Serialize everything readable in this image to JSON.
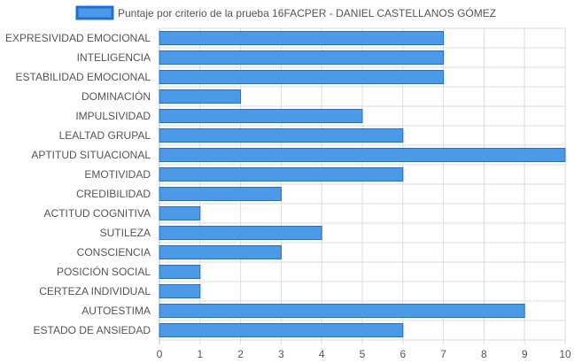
{
  "chart_data": {
    "type": "bar",
    "orientation": "horizontal",
    "categories": [
      "EXPRESIVIDAD EMOCIONAL",
      "INTELIGENCIA",
      "ESTABILIDAD EMOCIONAL",
      "DOMINACIÓN",
      "IMPULSIVIDAD",
      "LEALTAD GRUPAL",
      "APTITUD SITUACIONAL",
      "EMOTIVIDAD",
      "CREDIBILIDAD",
      "ACTITUD COGNITIVA",
      "SUTILEZA",
      "CONSCIENCIA",
      "POSICIÓN SOCIAL",
      "CERTEZA INDIVIDUAL",
      "AUTOESTIMA",
      "ESTADO DE ANSIEDAD"
    ],
    "series": [
      {
        "name": "Puntaje por criterio de la prueba 16FACPER - DANIEL CASTELLANOS GÓMEZ",
        "values": [
          7,
          7,
          7,
          2,
          5,
          6,
          10,
          6,
          3,
          1,
          4,
          3,
          1,
          1,
          9,
          6
        ],
        "color": "#4a9ae8",
        "border_color": "#1e6fd9"
      }
    ],
    "xlim": [
      0,
      10
    ],
    "x_ticks": [
      "0",
      "1",
      "2",
      "3",
      "4",
      "5",
      "6",
      "7",
      "8",
      "9",
      "10"
    ],
    "grid": true,
    "legend_placement": "top",
    "grid_color": "#dddddd"
  }
}
